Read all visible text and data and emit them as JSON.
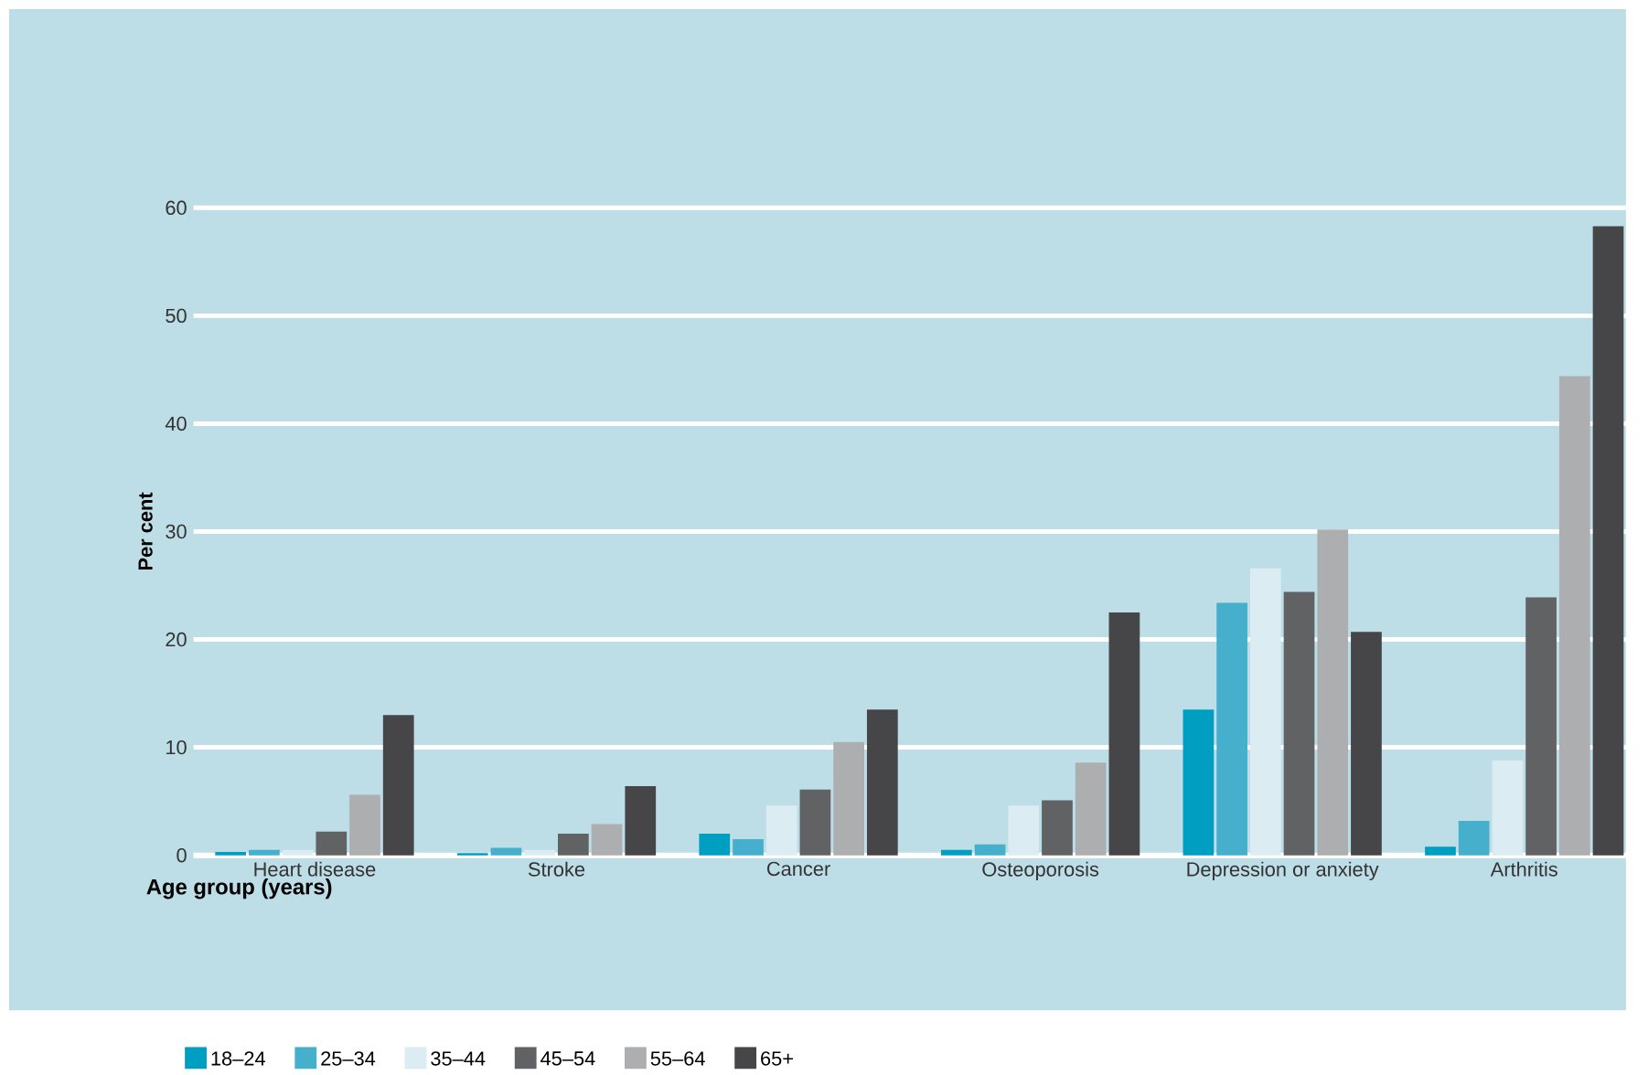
{
  "chart_data": {
    "type": "bar",
    "ylabel": "Per cent",
    "legend_title": "Age group (years)",
    "categories": [
      "Heart disease",
      "Stroke",
      "Cancer",
      "Osteoporosis",
      "Depression or anxiety",
      "Arthritis"
    ],
    "series": [
      {
        "name": "18–24",
        "color": "#009ec0",
        "values": [
          0.3,
          0.2,
          2.0,
          0.5,
          13.5,
          0.8
        ]
      },
      {
        "name": "25–34",
        "color": "#45afcc",
        "values": [
          0.5,
          0.7,
          1.5,
          1.0,
          23.4,
          3.2
        ]
      },
      {
        "name": "35–44",
        "color": "#dbecf2",
        "values": [
          0.5,
          0.5,
          4.6,
          4.6,
          26.6,
          8.8
        ]
      },
      {
        "name": "45–54",
        "color": "#616263",
        "values": [
          2.2,
          2.0,
          6.1,
          5.1,
          24.4,
          23.9
        ]
      },
      {
        "name": "55–64",
        "color": "#adaeaf",
        "values": [
          5.6,
          2.9,
          10.5,
          8.6,
          30.2,
          44.4
        ]
      },
      {
        "name": "65+",
        "color": "#464648",
        "values": [
          13.0,
          6.4,
          13.5,
          22.5,
          20.7,
          58.3
        ]
      }
    ],
    "ylim": [
      0,
      60
    ],
    "yticks": [
      0,
      10,
      20,
      30,
      40,
      50,
      60
    ],
    "grid": "y",
    "legend": "bottom left"
  }
}
